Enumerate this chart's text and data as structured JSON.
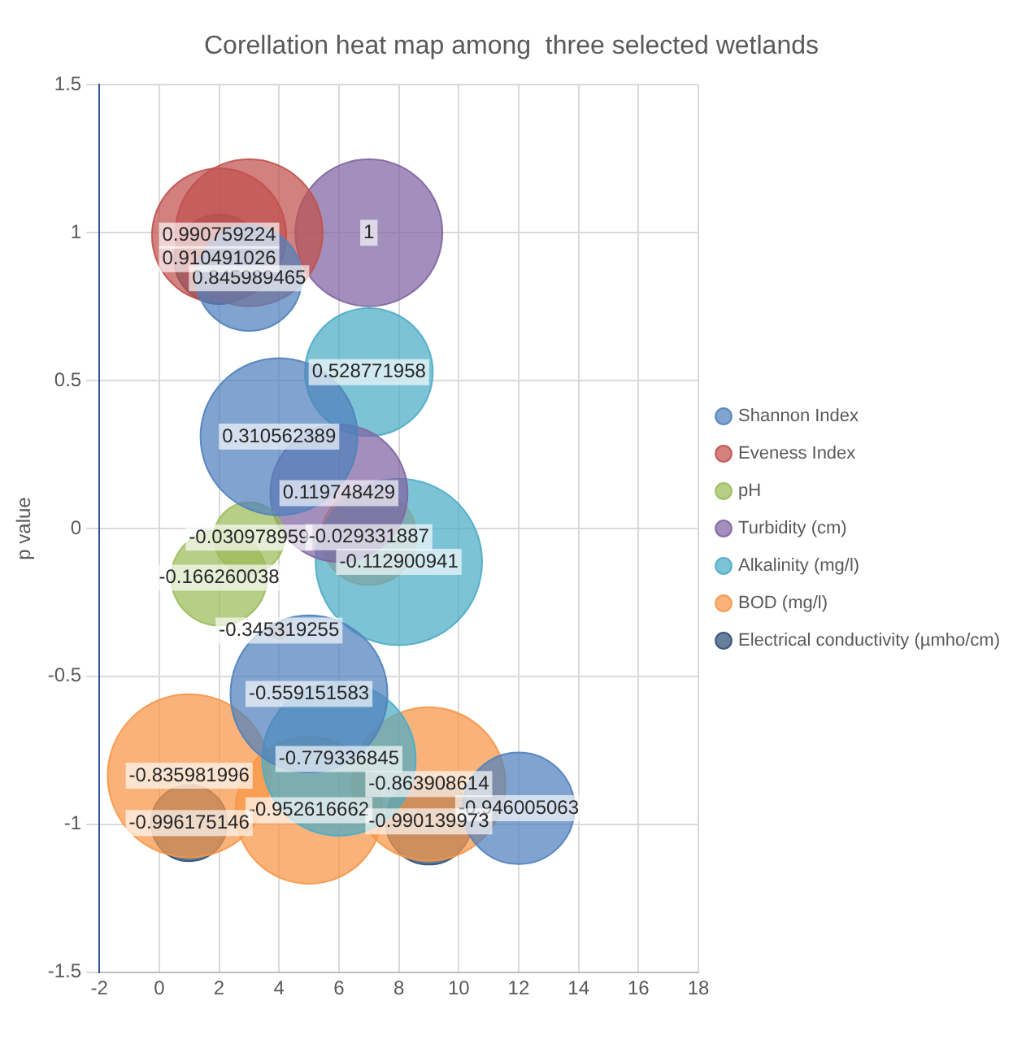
{
  "chart_data": {
    "type": "bubble",
    "title": "Corellation heat map among  three selected wetlands",
    "ylabel": "p value",
    "xlim": [
      -2,
      18
    ],
    "xticks": [
      -2,
      0,
      2,
      4,
      6,
      8,
      10,
      12,
      14,
      16,
      18
    ],
    "ylim": [
      -1.5,
      1.5
    ],
    "yticks": [
      -1.5,
      -1,
      -0.5,
      0,
      0.5,
      1,
      1.5
    ],
    "grid": true,
    "legend": "right",
    "series": [
      {
        "name": "Shannon Index",
        "color": "#4f81bd",
        "x": [
          3,
          4,
          5,
          12
        ],
        "values": [
          0.845989465,
          0.310562389,
          -0.559151583,
          -0.946005063
        ],
        "sizes": [
          0.4,
          0.89,
          0.89,
          0.45
        ],
        "value_labels": [
          "0.845989465",
          "0.310562389",
          "-0.559151583",
          "-0.946005063"
        ]
      },
      {
        "name": "Eveness Index",
        "color": "#c0504d",
        "x": [
          2,
          3
        ],
        "values": [
          0.990759224,
          1
        ],
        "sizes": [
          0.65,
          0.78
        ],
        "value_labels": [
          "0.990759224",
          null
        ]
      },
      {
        "name": "pH",
        "color": "#9bbb59",
        "x": [
          3,
          2
        ],
        "values": [
          -0.030978959,
          -0.166260038
        ],
        "sizes": [
          0.18,
          0.33
        ],
        "value_labels": [
          "-0.030978959",
          "-0.166260038"
        ]
      },
      {
        "name": "Turbidity (cm)",
        "color": "#8064a2",
        "x": [
          7,
          6
        ],
        "values": [
          1,
          0.119748429
        ],
        "sizes": [
          0.78,
          0.68
        ],
        "value_labels": [
          "1",
          "0.119748429"
        ]
      },
      {
        "name": "Alkalinity (mg/l)",
        "color": "#4bacc6",
        "x": [
          7,
          8,
          6
        ],
        "values": [
          0.528771958,
          -0.112900941,
          -0.779336845
        ],
        "sizes": [
          0.59,
          1,
          0.85
        ],
        "value_labels": [
          "0.528771958",
          "-0.112900941",
          "-0.779336845"
        ]
      },
      {
        "name": "BOD (mg/l)",
        "color": "#f79646",
        "x": [
          7,
          4,
          1,
          5,
          9
        ],
        "values": [
          -0.029331887,
          -0.345319255,
          -0.835981996,
          -0.952616662,
          -0.863908614
        ],
        "sizes": [
          0.33,
          0.01,
          0.96,
          0.78,
          0.85
        ],
        "value_labels": [
          "-0.029331887",
          "-0.345319255",
          "-0.835981996",
          "-0.952616662",
          "-0.863908614"
        ]
      },
      {
        "name": "Electrical conductivity (µmho/cm)",
        "color": "#2c4d75",
        "x": [
          2,
          1,
          9
        ],
        "values": [
          0.910491026,
          -0.996175146,
          -0.990139973
        ],
        "sizes": [
          0.29,
          0.21,
          0.27
        ],
        "value_labels": [
          "0.910491026",
          "-0.996175146",
          "-0.990139973"
        ]
      }
    ]
  }
}
